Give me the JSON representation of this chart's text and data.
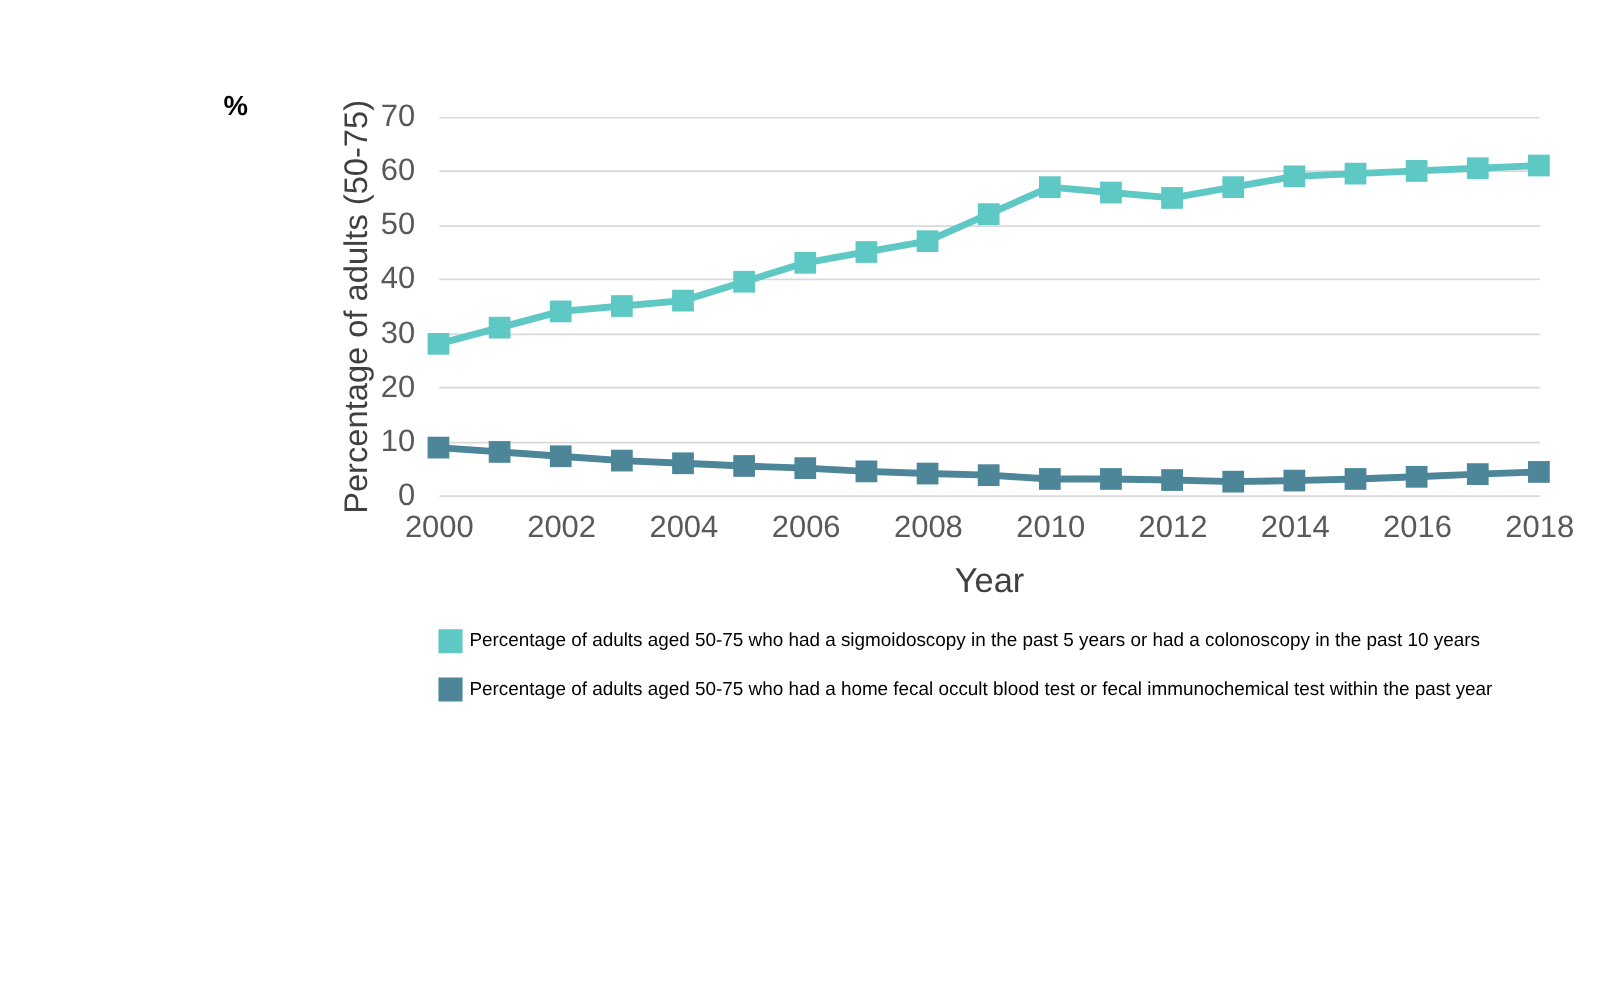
{
  "chart_data": {
    "type": "line",
    "xlabel": "Year",
    "ylabel": "Percentage of adults (50-75)",
    "annotations": [
      "%"
    ],
    "x": [
      2000,
      2001,
      2002,
      2003,
      2004,
      2005,
      2006,
      2007,
      2008,
      2009,
      2010,
      2011,
      2012,
      2013,
      2014,
      2015,
      2016,
      2017,
      2018
    ],
    "series": [
      {
        "name": "Percentage of adults aged 50-75 who had a sigmoidoscopy in the past 5 years or had a colonoscopy in the past 10 years",
        "color": "#5ec8c4",
        "values": [
          28,
          31,
          34,
          35,
          36,
          39.5,
          43,
          45,
          47,
          52,
          57,
          56,
          55,
          57,
          59,
          59.5,
          60,
          60.5,
          61
        ]
      },
      {
        "name": "Percentage of adults aged 50-75 who had a home fecal occult blood test or fecal immunochemical test within the past year",
        "color": "#4d8599",
        "values": [
          8.8,
          8,
          7.2,
          6.4,
          5.9,
          5.4,
          5,
          4.4,
          4,
          3.7,
          3,
          3,
          2.8,
          2.5,
          2.7,
          3,
          3.4,
          3.9,
          4.3
        ]
      }
    ],
    "xlim": [
      2000,
      2018
    ],
    "xticks": [
      2000,
      2002,
      2004,
      2006,
      2008,
      2010,
      2012,
      2014,
      2016,
      2018
    ],
    "ylim": [
      0,
      70
    ],
    "yticks": [
      0,
      10,
      20,
      30,
      40,
      50,
      60,
      70
    ],
    "grid": "y",
    "legend": "bottom",
    "marker": "square",
    "line_style": "solid"
  }
}
